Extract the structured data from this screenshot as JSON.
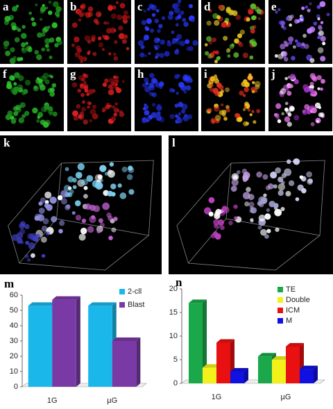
{
  "panels": [
    "a",
    "b",
    "c",
    "d",
    "e",
    "f",
    "g",
    "h",
    "i",
    "j",
    "k",
    "l"
  ],
  "chart_data": [
    {
      "type": "bar",
      "panel": "m",
      "categories": [
        "1G",
        "µG"
      ],
      "series": [
        {
          "name": "2-cll",
          "color": "#1ab8ea",
          "values": [
            53,
            53
          ]
        },
        {
          "name": "Blast",
          "color": "#7a3aa6",
          "values": [
            57,
            30
          ]
        }
      ],
      "ylim": [
        0,
        60
      ],
      "yticks": [
        0,
        10,
        20,
        30,
        40,
        50,
        60
      ],
      "legend": "top-right"
    },
    {
      "type": "bar",
      "panel": "n",
      "categories": [
        "1G",
        "µG"
      ],
      "series": [
        {
          "name": "TE",
          "color": "#1aa84a",
          "values": [
            17,
            5.7
          ]
        },
        {
          "name": "Double",
          "color": "#f2f21a",
          "values": [
            3.3,
            5
          ]
        },
        {
          "name": "ICM",
          "color": "#e81010",
          "values": [
            8.6,
            7.8
          ]
        },
        {
          "name": "M",
          "color": "#1010e0",
          "values": [
            2.5,
            3
          ]
        }
      ],
      "ylim": [
        0,
        20
      ],
      "yticks": [
        0,
        5,
        10,
        15,
        20
      ],
      "legend": "top-right"
    }
  ]
}
